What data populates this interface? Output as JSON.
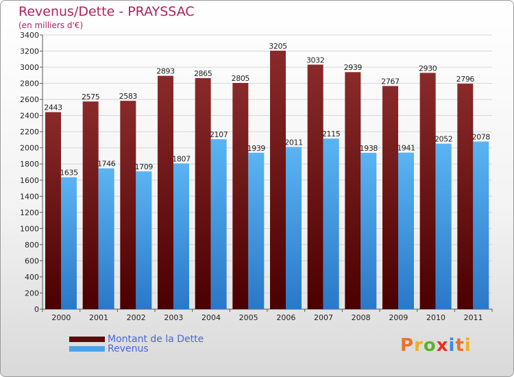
{
  "chart_data": {
    "type": "bar",
    "title": "Revenus/Dette - PRAYSSAC",
    "subtitle": "(en milliers d'€)",
    "categories": [
      "2000",
      "2001",
      "2002",
      "2003",
      "2004",
      "2005",
      "2006",
      "2007",
      "2008",
      "2009",
      "2010",
      "2011"
    ],
    "series": [
      {
        "name": "Montant de la Dette",
        "color": "#7a1a1a",
        "values": [
          2443,
          2575,
          2583,
          2893,
          2865,
          2805,
          3205,
          3032,
          2939,
          2767,
          2930,
          2796
        ]
      },
      {
        "name": "Revenus",
        "color": "#4aa3e8",
        "values": [
          1635,
          1746,
          1709,
          1807,
          2107,
          1939,
          2011,
          2115,
          1938,
          1941,
          2052,
          2078
        ]
      }
    ],
    "ylim": [
      0,
      3400
    ],
    "yticks": [
      0,
      200,
      400,
      600,
      800,
      1000,
      1200,
      1400,
      1600,
      1800,
      2000,
      2200,
      2400,
      2600,
      2800,
      3000,
      3200,
      3400
    ],
    "grid": true,
    "legend": "bottom-left"
  },
  "brand": {
    "logo_text": "Proxiti",
    "letter_colors": [
      "#e8742a",
      "#f0b020",
      "#5fb030",
      "#e83020",
      "#3a8ad8",
      "#e8742a",
      "#f0b020"
    ]
  }
}
